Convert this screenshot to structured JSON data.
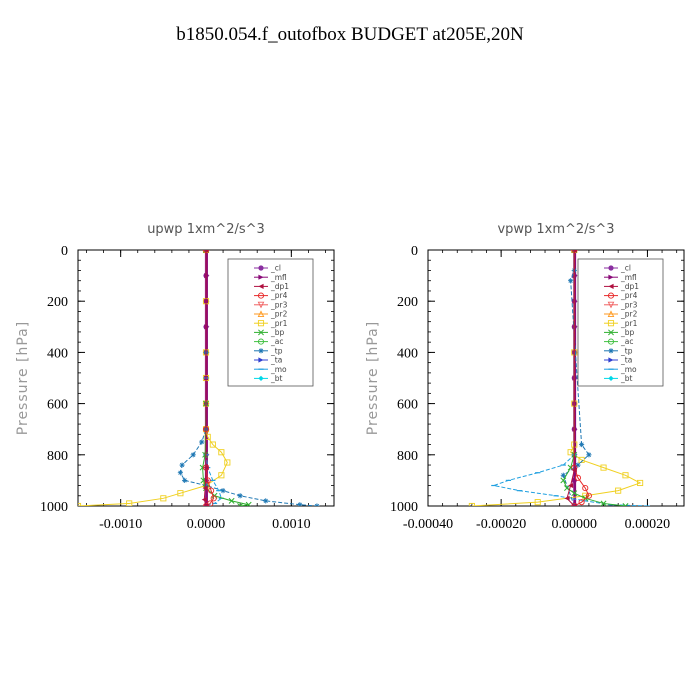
{
  "title": "b1850.054.f_outofbox  BUDGET at205E,20N",
  "legend_series": [
    {
      "name": "_cl",
      "color": "#8a2fa0",
      "marker": "circle"
    },
    {
      "name": "_mfl",
      "color": "#8a0a78",
      "marker": "triangle-r"
    },
    {
      "name": "_dp1",
      "color": "#b01040",
      "marker": "triangle-l"
    },
    {
      "name": "_pr4",
      "color": "#e82a2a",
      "marker": "circle-open"
    },
    {
      "name": "_pr3",
      "color": "#f06060",
      "marker": "triangle-open"
    },
    {
      "name": "_pr2",
      "color": "#ff9a20",
      "marker": "triangle-up-open"
    },
    {
      "name": "_pr1",
      "color": "#f0d020",
      "marker": "square-open"
    },
    {
      "name": "_bp",
      "color": "#30b030",
      "marker": "x"
    },
    {
      "name": "_ac",
      "color": "#40c040",
      "marker": "circle-open"
    },
    {
      "name": "_tp",
      "color": "#1f78b4",
      "marker": "star"
    },
    {
      "name": "_ta",
      "color": "#3040d0",
      "marker": "triangle-r"
    },
    {
      "name": "_mo",
      "color": "#20a0e0",
      "marker": "dash"
    },
    {
      "name": "_bt",
      "color": "#00d8e8",
      "marker": "diamond"
    }
  ],
  "chart_data": [
    {
      "type": "line",
      "title": "upwp   1xm^2/s^3",
      "ylabel": "Pressure  [hPa]",
      "xlim": [
        -0.0015,
        0.0015
      ],
      "ylim": [
        1000,
        0
      ],
      "xticks": [
        -0.001,
        0.0,
        0.001
      ],
      "xtick_labels": [
        "-0.0010",
        "0.0000",
        "0.0010"
      ],
      "yticks": [
        0,
        200,
        400,
        600,
        800,
        1000
      ],
      "ytick_labels": [
        "0",
        "200",
        "400",
        "600",
        "800",
        "1000"
      ],
      "legend_position": "top-right",
      "series": [
        {
          "name": "_cl",
          "color": "#8a2fa0",
          "x": [
            0,
            0,
            0,
            0,
            0,
            0,
            0,
            0,
            0,
            0,
            0
          ],
          "y": [
            0,
            100,
            200,
            300,
            400,
            500,
            600,
            700,
            800,
            900,
            1000
          ]
        },
        {
          "name": "_mfl",
          "color": "#8a0a78",
          "x": [
            1e-05,
            1e-05,
            1e-05,
            1e-05,
            1e-05,
            1e-05,
            1e-05,
            1e-05,
            1e-05,
            1e-05,
            1e-05
          ],
          "y": [
            0,
            100,
            200,
            300,
            400,
            500,
            600,
            700,
            800,
            900,
            1000
          ]
        },
        {
          "name": "_pr1",
          "color": "#f0d020",
          "x": [
            0,
            0,
            0,
            0,
            0,
            0,
            2e-05,
            8e-05,
            0.00018,
            0.00025,
            0.00018,
            0,
            -0.0003,
            -0.0005,
            -0.0009,
            -0.0015
          ],
          "y": [
            0,
            200,
            400,
            500,
            600,
            700,
            730,
            760,
            790,
            830,
            880,
            920,
            950,
            970,
            990,
            1000
          ]
        },
        {
          "name": "_tp",
          "color": "#1f78b4",
          "x": [
            0,
            0,
            0,
            -5e-05,
            -0.00015,
            -0.00028,
            -0.0003,
            -0.00025,
            0,
            0.0002,
            0.0004,
            0.0007,
            0.0011,
            0.0013
          ],
          "y": [
            0,
            400,
            700,
            750,
            800,
            840,
            870,
            900,
            920,
            940,
            960,
            980,
            995,
            1000
          ]
        },
        {
          "name": "_mo",
          "color": "#20a0e0",
          "x": [
            0,
            0,
            0,
            2e-05,
            8e-05,
            0.00015,
            0.00018,
            0.0001,
            0
          ],
          "y": [
            0,
            500,
            800,
            850,
            900,
            940,
            970,
            990,
            1000
          ]
        },
        {
          "name": "_bp",
          "color": "#30b030",
          "x": [
            0,
            0,
            -1e-05,
            -4e-05,
            -3e-05,
            0,
            0.0001,
            0.0003,
            0.0005,
            0.0004
          ],
          "y": [
            0,
            600,
            800,
            850,
            900,
            930,
            960,
            980,
            995,
            1000
          ]
        },
        {
          "name": "_pr4",
          "color": "#e82a2a",
          "x": [
            0,
            0,
            0,
            2e-05,
            6e-05,
            9e-05,
            5e-05,
            0
          ],
          "y": [
            0,
            700,
            850,
            900,
            940,
            970,
            990,
            1000
          ]
        },
        {
          "name": "_dp1",
          "color": "#b01040",
          "x": [
            0,
            0,
            -1e-05,
            -2e-05,
            0
          ],
          "y": [
            0,
            850,
            930,
            975,
            1000
          ]
        }
      ]
    },
    {
      "type": "line",
      "title": "vpwp   1xm^2/s^3",
      "ylabel": "Pressure  [hPa]",
      "xlim": [
        -0.0004,
        0.0003
      ],
      "ylim": [
        1000,
        0
      ],
      "xticks": [
        -0.0004,
        -0.0002,
        0.0,
        0.0002
      ],
      "xtick_labels": [
        "-0.00040",
        "-0.00020",
        "0.00000",
        "0.00020"
      ],
      "yticks": [
        0,
        200,
        400,
        600,
        800,
        1000
      ],
      "ytick_labels": [
        "0",
        "200",
        "400",
        "600",
        "800",
        "1000"
      ],
      "legend_position": "top-right",
      "series": [
        {
          "name": "_cl",
          "color": "#8a2fa0",
          "x": [
            0,
            0,
            0,
            0,
            0,
            0,
            0,
            0,
            0,
            0,
            0
          ],
          "y": [
            0,
            100,
            200,
            300,
            400,
            500,
            600,
            700,
            800,
            900,
            1000
          ]
        },
        {
          "name": "_mfl",
          "color": "#8a0a78",
          "x": [
            2e-06,
            2e-06,
            2e-06,
            2e-06,
            2e-06,
            2e-06,
            2e-06,
            2e-06,
            2e-06,
            2e-06,
            2e-06
          ],
          "y": [
            0,
            100,
            200,
            300,
            400,
            500,
            600,
            700,
            800,
            900,
            1000
          ]
        },
        {
          "name": "_pr1",
          "color": "#f0d020",
          "x": [
            0,
            0,
            0,
            0,
            -1e-05,
            2e-05,
            8e-05,
            0.00014,
            0.00018,
            0.00012,
            3e-05,
            -0.0001,
            -0.00028
          ],
          "y": [
            0,
            400,
            600,
            760,
            790,
            820,
            850,
            880,
            910,
            940,
            960,
            985,
            1000
          ]
        },
        {
          "name": "_tp",
          "color": "#1f78b4",
          "x": [
            0,
            0,
            -1e-05,
            2e-05,
            4e-05,
            1e-05,
            -3e-05,
            0
          ],
          "y": [
            0,
            80,
            120,
            760,
            800,
            840,
            880,
            1000
          ]
        },
        {
          "name": "_mo",
          "color": "#20a0e0",
          "x": [
            0,
            0,
            -3e-05,
            -0.0001,
            -0.00018,
            -0.00022,
            -0.00015,
            -5e-05,
            3e-05,
            0.0001,
            0.0002
          ],
          "y": [
            0,
            800,
            840,
            870,
            900,
            920,
            940,
            960,
            980,
            995,
            1000
          ]
        },
        {
          "name": "_bp",
          "color": "#30b030",
          "x": [
            0,
            0,
            -1e-05,
            -3e-05,
            -2e-05,
            0,
            3e-05,
            8e-05,
            0.00014
          ],
          "y": [
            0,
            800,
            850,
            900,
            930,
            950,
            970,
            990,
            1000
          ]
        },
        {
          "name": "_pr4",
          "color": "#e82a2a",
          "x": [
            0,
            0,
            1e-05,
            3e-05,
            4e-05,
            2e-05,
            0
          ],
          "y": [
            0,
            850,
            890,
            930,
            960,
            985,
            1000
          ]
        },
        {
          "name": "_dp1",
          "color": "#b01040",
          "x": [
            0,
            0,
            -1e-05,
            -2e-05,
            0
          ],
          "y": [
            0,
            860,
            920,
            970,
            1000
          ]
        }
      ]
    }
  ]
}
